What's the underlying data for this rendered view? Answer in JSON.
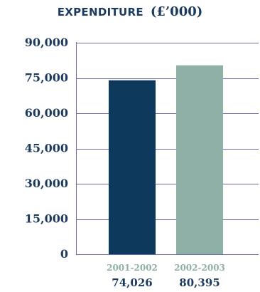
{
  "colors": {
    "text": "#1c3a5e",
    "gridline": "#6b6fa8",
    "series_2001_2002": "#0d3a5c",
    "series_2002_2003": "#8fb0a6",
    "category_text": "#8fb0a6"
  },
  "chart_data": {
    "type": "bar",
    "title": "EXPENDITURE",
    "title_unit": "(£’000)",
    "categories": [
      "2001-2002",
      "2002-2003"
    ],
    "values": [
      74026,
      80395
    ],
    "data_labels": [
      "74,026",
      "80,395"
    ],
    "ylim": [
      0,
      90000
    ],
    "yticks": [
      0,
      15000,
      30000,
      45000,
      60000,
      75000,
      90000
    ],
    "ytick_labels": [
      "0",
      "15,000",
      "30,000",
      "45,000",
      "60,000",
      "75,000",
      "90,000"
    ],
    "grid": true,
    "legend": "none"
  }
}
